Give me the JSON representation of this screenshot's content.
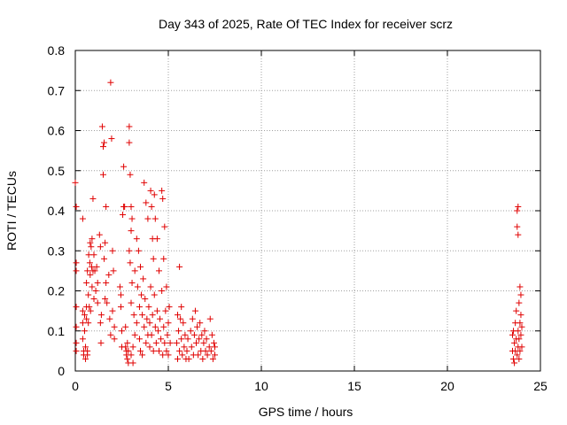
{
  "chart_data": {
    "type": "scatter",
    "title": "Day 343 of 2025, Rate Of TEC Index for receiver scrz",
    "xlabel": "GPS time / hours",
    "ylabel": "ROTI / TECUs",
    "xlim": [
      0,
      25
    ],
    "ylim": [
      0,
      0.8
    ],
    "x_ticks": [
      "0",
      "5",
      "10",
      "15",
      "20",
      "25"
    ],
    "x_tick_values": [
      0,
      5,
      10,
      15,
      20,
      25
    ],
    "y_ticks": [
      "0",
      "0.1",
      "0.2",
      "0.3",
      "0.4",
      "0.5",
      "0.6",
      "0.7",
      "0.8"
    ],
    "y_tick_values": [
      0,
      0.1,
      0.2,
      0.3,
      0.4,
      0.5,
      0.6,
      0.7,
      0.8
    ],
    "grid": true,
    "marker": "+",
    "color": "#e00000",
    "series": [
      {
        "name": "ROTI",
        "points": [
          [
            0.0,
            0.47
          ],
          [
            0.05,
            0.41
          ],
          [
            0.05,
            0.27
          ],
          [
            0.05,
            0.25
          ],
          [
            0.05,
            0.16
          ],
          [
            0.05,
            0.11
          ],
          [
            0.05,
            0.07
          ],
          [
            0.05,
            0.05
          ],
          [
            0.4,
            0.38
          ],
          [
            0.4,
            0.15
          ],
          [
            0.4,
            0.12
          ],
          [
            0.4,
            0.08
          ],
          [
            0.45,
            0.05
          ],
          [
            0.45,
            0.04
          ],
          [
            0.5,
            0.14
          ],
          [
            0.5,
            0.1
          ],
          [
            0.55,
            0.06
          ],
          [
            0.55,
            0.03
          ],
          [
            0.6,
            0.16
          ],
          [
            0.6,
            0.22
          ],
          [
            0.6,
            0.13
          ],
          [
            0.65,
            0.25
          ],
          [
            0.65,
            0.05
          ],
          [
            0.65,
            0.04
          ],
          [
            0.7,
            0.19
          ],
          [
            0.7,
            0.12
          ],
          [
            0.72,
            0.29
          ],
          [
            0.75,
            0.16
          ],
          [
            0.78,
            0.27
          ],
          [
            0.8,
            0.32
          ],
          [
            0.8,
            0.24
          ],
          [
            0.82,
            0.15
          ],
          [
            0.85,
            0.31
          ],
          [
            0.88,
            0.26
          ],
          [
            0.9,
            0.33
          ],
          [
            0.9,
            0.21
          ],
          [
            0.95,
            0.43
          ],
          [
            0.95,
            0.25
          ],
          [
            1.0,
            0.29
          ],
          [
            1.0,
            0.18
          ],
          [
            1.05,
            0.25
          ],
          [
            1.1,
            0.2
          ],
          [
            1.15,
            0.26
          ],
          [
            1.2,
            0.22
          ],
          [
            1.2,
            0.17
          ],
          [
            1.3,
            0.34
          ],
          [
            1.35,
            0.31
          ],
          [
            1.35,
            0.12
          ],
          [
            1.38,
            0.07
          ],
          [
            1.4,
            0.14
          ],
          [
            1.45,
            0.61
          ],
          [
            1.5,
            0.56
          ],
          [
            1.5,
            0.49
          ],
          [
            1.55,
            0.57
          ],
          [
            1.55,
            0.28
          ],
          [
            1.6,
            0.32
          ],
          [
            1.6,
            0.18
          ],
          [
            1.65,
            0.41
          ],
          [
            1.65,
            0.22
          ],
          [
            1.7,
            0.17
          ],
          [
            1.8,
            0.24
          ],
          [
            1.85,
            0.13
          ],
          [
            1.9,
            0.72
          ],
          [
            1.9,
            0.09
          ],
          [
            1.95,
            0.58
          ],
          [
            2.0,
            0.3
          ],
          [
            2.0,
            0.15
          ],
          [
            2.05,
            0.25
          ],
          [
            2.1,
            0.11
          ],
          [
            2.1,
            0.08
          ],
          [
            2.4,
            0.21
          ],
          [
            2.45,
            0.19
          ],
          [
            2.45,
            0.16
          ],
          [
            2.5,
            0.1
          ],
          [
            2.5,
            0.06
          ],
          [
            2.55,
            0.39
          ],
          [
            2.6,
            0.51
          ],
          [
            2.6,
            0.41
          ],
          [
            2.65,
            0.41
          ],
          [
            2.7,
            0.11
          ],
          [
            2.7,
            0.06
          ],
          [
            2.75,
            0.05
          ],
          [
            2.75,
            0.04
          ],
          [
            2.8,
            0.07
          ],
          [
            2.8,
            0.03
          ],
          [
            2.85,
            0.02
          ],
          [
            2.85,
            0.05
          ],
          [
            2.9,
            0.61
          ],
          [
            2.9,
            0.57
          ],
          [
            2.9,
            0.3
          ],
          [
            2.95,
            0.49
          ],
          [
            2.95,
            0.27
          ],
          [
            3.0,
            0.41
          ],
          [
            3.0,
            0.35
          ],
          [
            3.0,
            0.17
          ],
          [
            3.0,
            0.04
          ],
          [
            3.05,
            0.38
          ],
          [
            3.05,
            0.22
          ],
          [
            3.1,
            0.06
          ],
          [
            3.1,
            0.02
          ],
          [
            3.15,
            0.14
          ],
          [
            3.2,
            0.25
          ],
          [
            3.2,
            0.09
          ],
          [
            3.3,
            0.33
          ],
          [
            3.3,
            0.12
          ],
          [
            3.35,
            0.21
          ],
          [
            3.4,
            0.3
          ],
          [
            3.45,
            0.16
          ],
          [
            3.45,
            0.08
          ],
          [
            3.5,
            0.26
          ],
          [
            3.5,
            0.05
          ],
          [
            3.55,
            0.19
          ],
          [
            3.6,
            0.14
          ],
          [
            3.6,
            0.04
          ],
          [
            3.65,
            0.23
          ],
          [
            3.7,
            0.11
          ],
          [
            3.7,
            0.47
          ],
          [
            3.75,
            0.18
          ],
          [
            3.8,
            0.07
          ],
          [
            3.8,
            0.42
          ],
          [
            3.85,
            0.13
          ],
          [
            3.9,
            0.09
          ],
          [
            3.9,
            0.38
          ],
          [
            3.95,
            0.16
          ],
          [
            4.0,
            0.12
          ],
          [
            4.0,
            0.06
          ],
          [
            4.05,
            0.45
          ],
          [
            4.05,
            0.21
          ],
          [
            4.1,
            0.41
          ],
          [
            4.1,
            0.09
          ],
          [
            4.15,
            0.33
          ],
          [
            4.15,
            0.14
          ],
          [
            4.2,
            0.05
          ],
          [
            4.2,
            0.28
          ],
          [
            4.25,
            0.44
          ],
          [
            4.25,
            0.19
          ],
          [
            4.3,
            0.11
          ],
          [
            4.3,
            0.38
          ],
          [
            4.35,
            0.07
          ],
          [
            4.4,
            0.15
          ],
          [
            4.4,
            0.33
          ],
          [
            4.45,
            0.1
          ],
          [
            4.5,
            0.05
          ],
          [
            4.5,
            0.25
          ],
          [
            4.55,
            0.13
          ],
          [
            4.6,
            0.08
          ],
          [
            4.65,
            0.45
          ],
          [
            4.65,
            0.2
          ],
          [
            4.7,
            0.43
          ],
          [
            4.7,
            0.04
          ],
          [
            4.75,
            0.28
          ],
          [
            4.75,
            0.11
          ],
          [
            4.8,
            0.07
          ],
          [
            4.8,
            0.36
          ],
          [
            4.85,
            0.15
          ],
          [
            4.9,
            0.05
          ],
          [
            4.9,
            0.21
          ],
          [
            4.95,
            0.09
          ],
          [
            5.0,
            0.12
          ],
          [
            5.0,
            0.04
          ],
          [
            5.05,
            0.16
          ],
          [
            5.1,
            0.07
          ],
          [
            5.45,
            0.07
          ],
          [
            5.5,
            0.14
          ],
          [
            5.5,
            0.03
          ],
          [
            5.55,
            0.1
          ],
          [
            5.6,
            0.05
          ],
          [
            5.6,
            0.26
          ],
          [
            5.65,
            0.13
          ],
          [
            5.7,
            0.08
          ],
          [
            5.7,
            0.16
          ],
          [
            5.75,
            0.04
          ],
          [
            5.8,
            0.12
          ],
          [
            5.85,
            0.06
          ],
          [
            5.9,
            0.09
          ],
          [
            5.95,
            0.03
          ],
          [
            6.0,
            0.05
          ],
          [
            6.05,
            0.08
          ],
          [
            6.1,
            0.03
          ],
          [
            6.2,
            0.1
          ],
          [
            6.25,
            0.06
          ],
          [
            6.3,
            0.13
          ],
          [
            6.35,
            0.04
          ],
          [
            6.4,
            0.09
          ],
          [
            6.45,
            0.15
          ],
          [
            6.5,
            0.07
          ],
          [
            6.55,
            0.11
          ],
          [
            6.6,
            0.04
          ],
          [
            6.65,
            0.08
          ],
          [
            6.7,
            0.12
          ],
          [
            6.75,
            0.05
          ],
          [
            6.8,
            0.09
          ],
          [
            6.85,
            0.03
          ],
          [
            6.9,
            0.07
          ],
          [
            6.95,
            0.1
          ],
          [
            7.0,
            0.05
          ],
          [
            7.05,
            0.08
          ],
          [
            7.1,
            0.04
          ],
          [
            7.2,
            0.06
          ],
          [
            7.25,
            0.13
          ],
          [
            7.3,
            0.05
          ],
          [
            7.35,
            0.09
          ],
          [
            7.4,
            0.03
          ],
          [
            7.45,
            0.07
          ],
          [
            7.5,
            0.04
          ],
          [
            7.5,
            0.06
          ],
          [
            23.5,
            0.09
          ],
          [
            23.5,
            0.05
          ],
          [
            23.55,
            0.03
          ],
          [
            23.55,
            0.1
          ],
          [
            23.6,
            0.07
          ],
          [
            23.6,
            0.02
          ],
          [
            23.65,
            0.12
          ],
          [
            23.65,
            0.05
          ],
          [
            23.7,
            0.08
          ],
          [
            23.7,
            0.15
          ],
          [
            23.75,
            0.04
          ],
          [
            23.75,
            0.4
          ],
          [
            23.75,
            0.36
          ],
          [
            23.8,
            0.1
          ],
          [
            23.8,
            0.06
          ],
          [
            23.8,
            0.41
          ],
          [
            23.8,
            0.34
          ],
          [
            23.85,
            0.17
          ],
          [
            23.85,
            0.08
          ],
          [
            23.85,
            0.03
          ],
          [
            23.9,
            0.21
          ],
          [
            23.9,
            0.12
          ],
          [
            23.9,
            0.05
          ],
          [
            23.95,
            0.19
          ],
          [
            23.95,
            0.09
          ],
          [
            23.95,
            0.14
          ],
          [
            24.0,
            0.06
          ],
          [
            24.0,
            0.11
          ]
        ]
      }
    ]
  }
}
